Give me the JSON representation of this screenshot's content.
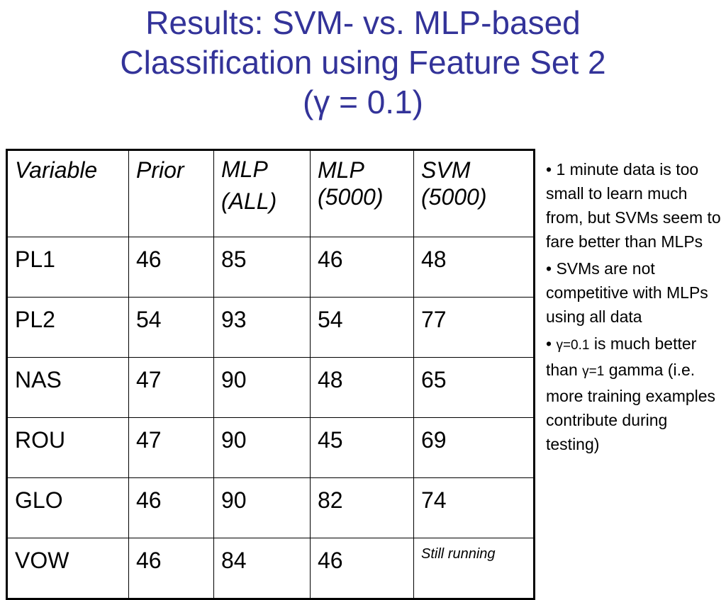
{
  "slide": {
    "title_line1": "Results: SVM- vs. MLP-based",
    "title_line2": "Classification using Feature Set 2",
    "title_line3": "(γ = 0.1)",
    "title_color": "#333399"
  },
  "table": {
    "headers": [
      {
        "line1": "Variable",
        "line2": ""
      },
      {
        "line1": "Prior",
        "line2": ""
      },
      {
        "line1": "MLP",
        "line2": "(ALL)"
      },
      {
        "line1": "MLP",
        "line2": "(5000)"
      },
      {
        "line1": "SVM",
        "line2": "(5000)"
      }
    ],
    "rows": [
      [
        "PL1",
        "46",
        "85",
        "46",
        "48"
      ],
      [
        "PL2",
        "54",
        "93",
        "54",
        "77"
      ],
      [
        "NAS",
        "47",
        "90",
        "48",
        "65"
      ],
      [
        "ROU",
        "47",
        "90",
        "45",
        "69"
      ],
      [
        "GLO",
        "46",
        "90",
        "82",
        "74"
      ],
      [
        "VOW",
        "46",
        "84",
        "46",
        "Still running"
      ]
    ]
  },
  "notes": {
    "bullet1": "•  1 minute data is too small to learn much from, but SVMs seem to fare better than MLPs",
    "bullet2": "• SVMs are not competitive with MLPs using all data",
    "bullet3_a": "• ",
    "bullet3_gamma1": "γ=0.1",
    "bullet3_b": " is much better than ",
    "bullet3_gamma2": "γ=1",
    "bullet3_c": " gamma (i.e. more training examples contribute during testing)"
  }
}
